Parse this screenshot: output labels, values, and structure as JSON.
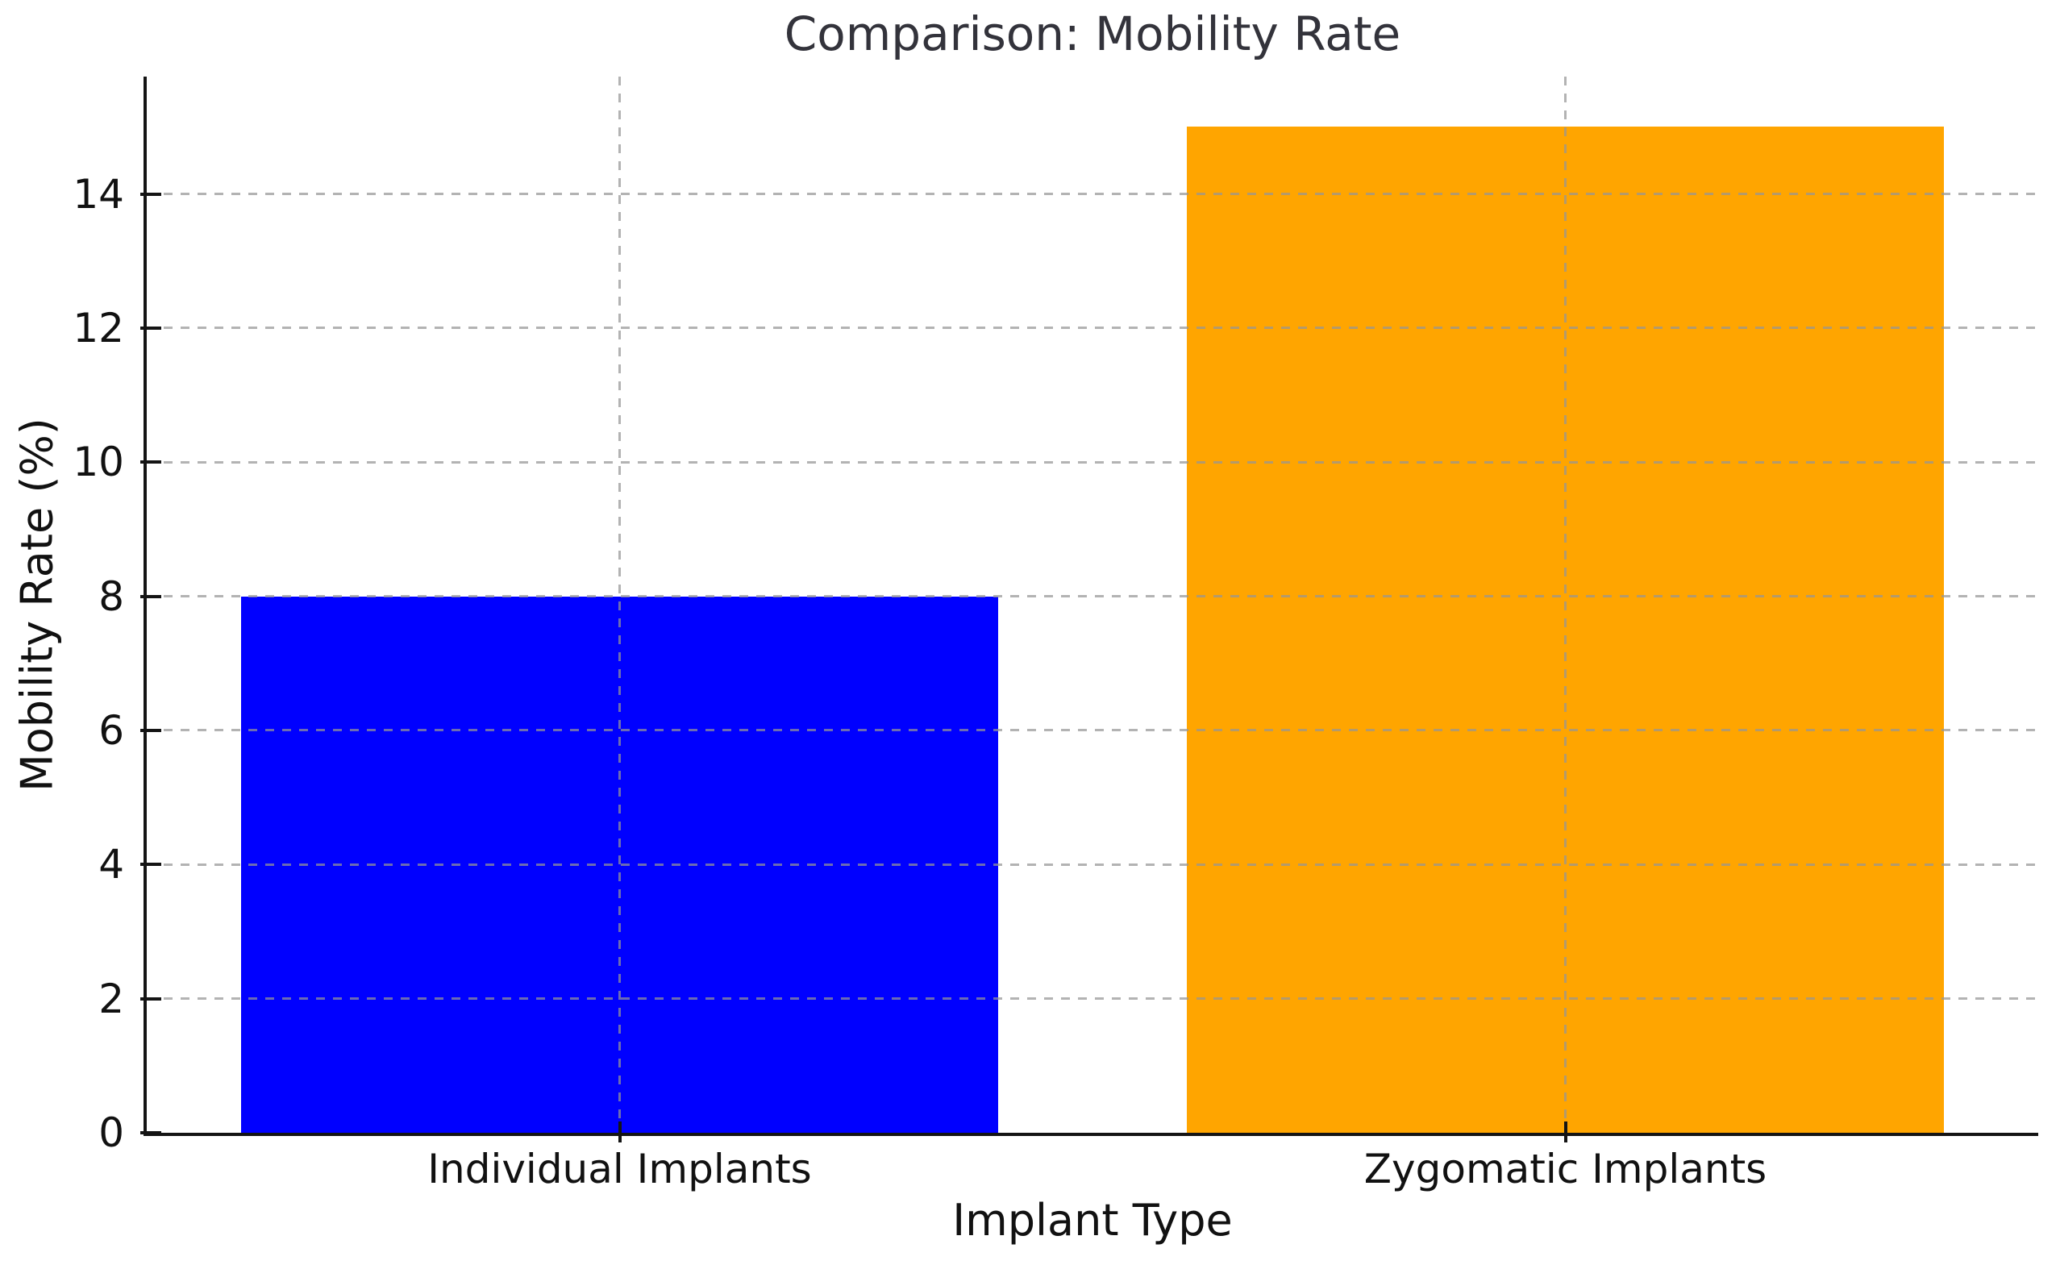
{
  "chart_data": {
    "type": "bar",
    "title": "Comparison: Mobility Rate",
    "xlabel": "Implant Type",
    "ylabel": "Mobility Rate (%)",
    "categories": [
      "Individual Implants",
      "Zygomatic Implants"
    ],
    "values": [
      8,
      15
    ],
    "bar_colors": [
      "#0000ff",
      "#ffa500"
    ],
    "yticks": [
      0,
      2,
      4,
      6,
      8,
      10,
      12,
      14
    ],
    "ylim": [
      0,
      15.75
    ],
    "bar_width_fraction": 0.8,
    "grid": {
      "style": "dashed",
      "color": "#b4b4b4",
      "horizontal_at_yticks": true,
      "vertical_at_category_centers": true,
      "drawn_over_bars": true
    },
    "legend": "none"
  },
  "colors": {
    "background": "#ffffff",
    "spine": "#141414",
    "tick_text": "#111111",
    "title_text": "#33333b"
  }
}
